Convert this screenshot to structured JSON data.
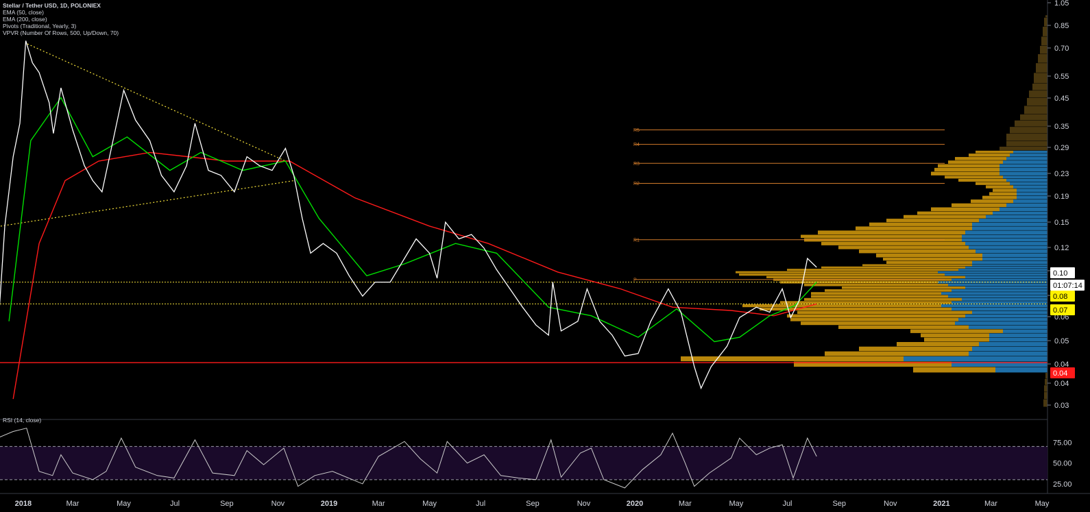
{
  "legend": {
    "title": "Stellar / Tether USD, 1D, POLONIEX",
    "ema50": "EMA (50, close)",
    "ema200": "EMA (200, close)",
    "pivots": "Pivots (Traditional, Yearly, 3)",
    "vpvr": "VPVR (Number Of Rows, 500, Up/Down, 70)"
  },
  "rsi_legend": "RSI (14, close)",
  "colors": {
    "background": "#000000",
    "price": "#ffffff",
    "ema50": "#00e000",
    "ema200": "#ff1a1a",
    "pivot": "#d07a2a",
    "trendline": "#f5e13a",
    "vp_up": "#1e6fa8",
    "vp_down": "#b8860b",
    "rsi_band": "#1a0a2a",
    "rsi_line": "#cccccc"
  },
  "chart_data": {
    "type": "line",
    "symbol": "Stellar / Tether USD",
    "interval": "1D",
    "exchange": "POLONIEX",
    "y_scale": "log",
    "ylim": [
      0.025,
      1.05
    ],
    "y_ticks": [
      "1.05",
      "0.85",
      "0.70",
      "0.55",
      "0.45",
      "0.35",
      "0.29",
      "0.23",
      "0.19",
      "0.15",
      "0.12",
      "0.10",
      "0.08",
      "0.06",
      "0.05",
      "0.04",
      "0.04",
      "0.03"
    ],
    "x_ticks": [
      "2018",
      "Mar",
      "May",
      "Jul",
      "Sep",
      "Nov",
      "2019",
      "Mar",
      "May",
      "Jul",
      "Sep",
      "Nov",
      "2020",
      "Mar",
      "May",
      "Jul",
      "Sep",
      "Nov",
      "2021",
      "Mar",
      "May"
    ],
    "price_series": [
      [
        "2017-12-01",
        0.05
      ],
      [
        "2017-12-10",
        0.14
      ],
      [
        "2017-12-20",
        0.26
      ],
      [
        "2017-12-28",
        0.35
      ],
      [
        "2018-01-04",
        0.73
      ],
      [
        "2018-01-12",
        0.6
      ],
      [
        "2018-01-20",
        0.55
      ],
      [
        "2018-02-01",
        0.42
      ],
      [
        "2018-02-06",
        0.32
      ],
      [
        "2018-02-15",
        0.48
      ],
      [
        "2018-03-01",
        0.33
      ],
      [
        "2018-03-15",
        0.24
      ],
      [
        "2018-03-25",
        0.21
      ],
      [
        "2018-04-05",
        0.19
      ],
      [
        "2018-04-20",
        0.32
      ],
      [
        "2018-05-01",
        0.47
      ],
      [
        "2018-05-15",
        0.36
      ],
      [
        "2018-06-01",
        0.3
      ],
      [
        "2018-06-15",
        0.22
      ],
      [
        "2018-06-30",
        0.19
      ],
      [
        "2018-07-15",
        0.24
      ],
      [
        "2018-07-25",
        0.35
      ],
      [
        "2018-08-10",
        0.23
      ],
      [
        "2018-08-25",
        0.22
      ],
      [
        "2018-09-10",
        0.19
      ],
      [
        "2018-09-25",
        0.26
      ],
      [
        "2018-10-10",
        0.24
      ],
      [
        "2018-10-25",
        0.23
      ],
      [
        "2018-11-10",
        0.28
      ],
      [
        "2018-11-20",
        0.22
      ],
      [
        "2018-11-30",
        0.15
      ],
      [
        "2018-12-10",
        0.11
      ],
      [
        "2018-12-25",
        0.12
      ],
      [
        "2019-01-10",
        0.11
      ],
      [
        "2019-01-25",
        0.09
      ],
      [
        "2019-02-10",
        0.075
      ],
      [
        "2019-02-25",
        0.085
      ],
      [
        "2019-03-15",
        0.085
      ],
      [
        "2019-04-01",
        0.105
      ],
      [
        "2019-04-15",
        0.125
      ],
      [
        "2019-05-01",
        0.11
      ],
      [
        "2019-05-10",
        0.088
      ],
      [
        "2019-05-20",
        0.145
      ],
      [
        "2019-06-05",
        0.125
      ],
      [
        "2019-06-20",
        0.13
      ],
      [
        "2019-07-05",
        0.115
      ],
      [
        "2019-07-20",
        0.095
      ],
      [
        "2019-08-05",
        0.08
      ],
      [
        "2019-08-20",
        0.068
      ],
      [
        "2019-09-05",
        0.058
      ],
      [
        "2019-09-20",
        0.053
      ],
      [
        "2019-09-25",
        0.085
      ],
      [
        "2019-10-05",
        0.055
      ],
      [
        "2019-10-25",
        0.06
      ],
      [
        "2019-11-05",
        0.08
      ],
      [
        "2019-11-20",
        0.06
      ],
      [
        "2019-12-05",
        0.053
      ],
      [
        "2019-12-20",
        0.044
      ],
      [
        "2020-01-05",
        0.045
      ],
      [
        "2020-01-20",
        0.06
      ],
      [
        "2020-02-10",
        0.08
      ],
      [
        "2020-02-25",
        0.065
      ],
      [
        "2020-03-12",
        0.04
      ],
      [
        "2020-03-20",
        0.033
      ],
      [
        "2020-04-01",
        0.04
      ],
      [
        "2020-04-20",
        0.048
      ],
      [
        "2020-05-05",
        0.062
      ],
      [
        "2020-05-25",
        0.068
      ],
      [
        "2020-06-10",
        0.065
      ],
      [
        "2020-06-25",
        0.08
      ],
      [
        "2020-07-05",
        0.062
      ],
      [
        "2020-07-15",
        0.072
      ],
      [
        "2020-07-25",
        0.105
      ],
      [
        "2020-08-05",
        0.097
      ]
    ],
    "ema50_series": [
      [
        "2017-12-15",
        0.06
      ],
      [
        "2018-01-10",
        0.3
      ],
      [
        "2018-02-15",
        0.44
      ],
      [
        "2018-03-25",
        0.26
      ],
      [
        "2018-05-05",
        0.31
      ],
      [
        "2018-06-25",
        0.23
      ],
      [
        "2018-08-01",
        0.27
      ],
      [
        "2018-09-20",
        0.23
      ],
      [
        "2018-11-10",
        0.25
      ],
      [
        "2018-12-20",
        0.15
      ],
      [
        "2019-02-15",
        0.09
      ],
      [
        "2019-04-01",
        0.1
      ],
      [
        "2019-06-01",
        0.12
      ],
      [
        "2019-07-20",
        0.11
      ],
      [
        "2019-09-20",
        0.068
      ],
      [
        "2019-11-10",
        0.063
      ],
      [
        "2020-01-05",
        0.052
      ],
      [
        "2020-02-20",
        0.067
      ],
      [
        "2020-04-05",
        0.05
      ],
      [
        "2020-05-05",
        0.052
      ],
      [
        "2020-06-10",
        0.063
      ],
      [
        "2020-07-10",
        0.069
      ],
      [
        "2020-08-05",
        0.085
      ]
    ],
    "ema200_series": [
      [
        "2017-12-20",
        0.03
      ],
      [
        "2018-01-20",
        0.12
      ],
      [
        "2018-02-20",
        0.21
      ],
      [
        "2018-04-01",
        0.25
      ],
      [
        "2018-06-01",
        0.27
      ],
      [
        "2018-09-01",
        0.25
      ],
      [
        "2018-11-15",
        0.25
      ],
      [
        "2019-02-01",
        0.18
      ],
      [
        "2019-05-01",
        0.14
      ],
      [
        "2019-07-10",
        0.12
      ],
      [
        "2019-10-01",
        0.093
      ],
      [
        "2019-12-15",
        0.08
      ],
      [
        "2020-02-15",
        0.068
      ],
      [
        "2020-04-25",
        0.066
      ],
      [
        "2020-06-15",
        0.063
      ],
      [
        "2020-08-05",
        0.07
      ]
    ],
    "trendlines": [
      {
        "from": [
          "2018-01-06",
          0.71
        ],
        "to": [
          "2018-11-10",
          0.25
        ]
      },
      {
        "from": [
          "2017-12-05",
          0.14
        ],
        "to": [
          "2018-11-20",
          0.21
        ]
      }
    ],
    "pivots": [
      {
        "label": "R5",
        "value": 0.33
      },
      {
        "label": "R4",
        "value": 0.29
      },
      {
        "label": "R3",
        "value": 0.245
      },
      {
        "label": "R2",
        "value": 0.205
      },
      {
        "label": "R1",
        "value": 0.124
      },
      {
        "label": "P",
        "value": 0.087
      }
    ],
    "horizontal_lines": [
      {
        "value": 0.085,
        "color": "#f5e13a",
        "style": "dotted"
      },
      {
        "value": 0.07,
        "color": "#f5e13a",
        "style": "dotted"
      },
      {
        "value": 0.0415,
        "color": "#ff1a1a",
        "style": "solid"
      }
    ],
    "price_labels": [
      {
        "text": "0.10",
        "value": 0.097,
        "bg": "#ffffff",
        "fg": "#000000"
      },
      {
        "text": "01:07:14",
        "value": 0.09,
        "bg": "#ffffff",
        "fg": "#000000"
      },
      {
        "text": "0.08",
        "value": 0.081,
        "bg": "#fff200",
        "fg": "#000000"
      },
      {
        "text": "0.07",
        "value": 0.07,
        "bg": "#fff200",
        "fg": "#000000"
      },
      {
        "text": "0.04",
        "value": 0.0415,
        "bg": "#ff1a1a",
        "fg": "#ffffff"
      }
    ],
    "volume_profile": [
      [
        0.028,
        0,
        6
      ],
      [
        0.03,
        0,
        5
      ],
      [
        0.032,
        0,
        5
      ],
      [
        0.034,
        0,
        4
      ],
      [
        0.036,
        0,
        3
      ],
      [
        0.038,
        76,
        120
      ],
      [
        0.04,
        140,
        230
      ],
      [
        0.042,
        210,
        325
      ],
      [
        0.044,
        115,
        210
      ],
      [
        0.046,
        110,
        165
      ],
      [
        0.048,
        100,
        120
      ],
      [
        0.05,
        85,
        95
      ],
      [
        0.052,
        85,
        100
      ],
      [
        0.054,
        65,
        135
      ],
      [
        0.056,
        115,
        190
      ],
      [
        0.058,
        135,
        225
      ],
      [
        0.06,
        130,
        245
      ],
      [
        0.062,
        120,
        260
      ],
      [
        0.064,
        110,
        255
      ],
      [
        0.066,
        140,
        280
      ],
      [
        0.068,
        155,
        290
      ],
      [
        0.07,
        140,
        250
      ],
      [
        0.072,
        125,
        230
      ],
      [
        0.074,
        145,
        200
      ],
      [
        0.076,
        155,
        190
      ],
      [
        0.078,
        140,
        185
      ],
      [
        0.08,
        120,
        180
      ],
      [
        0.082,
        145,
        210
      ],
      [
        0.084,
        160,
        230
      ],
      [
        0.086,
        140,
        260
      ],
      [
        0.088,
        120,
        290
      ],
      [
        0.09,
        150,
        300
      ],
      [
        0.092,
        160,
        295
      ],
      [
        0.094,
        130,
        250
      ],
      [
        0.096,
        120,
        210
      ],
      [
        0.098,
        110,
        160
      ],
      [
        0.1,
        110,
        125
      ],
      [
        0.103,
        95,
        145
      ],
      [
        0.106,
        95,
        155
      ],
      [
        0.11,
        105,
        170
      ],
      [
        0.114,
        115,
        190
      ],
      [
        0.118,
        120,
        210
      ],
      [
        0.122,
        125,
        230
      ],
      [
        0.126,
        125,
        235
      ],
      [
        0.13,
        120,
        215
      ],
      [
        0.135,
        110,
        170
      ],
      [
        0.14,
        110,
        150
      ],
      [
        0.145,
        100,
        135
      ],
      [
        0.15,
        90,
        120
      ],
      [
        0.155,
        80,
        110
      ],
      [
        0.16,
        70,
        100
      ],
      [
        0.166,
        60,
        80
      ],
      [
        0.172,
        50,
        62
      ],
      [
        0.178,
        45,
        50
      ],
      [
        0.184,
        45,
        40
      ],
      [
        0.19,
        45,
        35
      ],
      [
        0.196,
        50,
        40
      ],
      [
        0.202,
        55,
        50
      ],
      [
        0.208,
        60,
        70
      ],
      [
        0.214,
        65,
        85
      ],
      [
        0.22,
        70,
        100
      ],
      [
        0.228,
        70,
        95
      ],
      [
        0.236,
        70,
        90
      ],
      [
        0.244,
        65,
        80
      ],
      [
        0.252,
        60,
        75
      ],
      [
        0.26,
        55,
        60
      ],
      [
        0.268,
        50,
        55
      ],
      [
        0.275,
        0,
        70
      ],
      [
        0.285,
        0,
        60
      ],
      [
        0.3,
        0,
        60
      ],
      [
        0.32,
        0,
        55
      ],
      [
        0.34,
        0,
        48
      ],
      [
        0.36,
        0,
        40
      ],
      [
        0.38,
        0,
        34
      ],
      [
        0.41,
        0,
        30
      ],
      [
        0.44,
        0,
        27
      ],
      [
        0.47,
        0,
        22
      ],
      [
        0.5,
        0,
        20
      ],
      [
        0.55,
        0,
        17
      ],
      [
        0.6,
        0,
        14
      ],
      [
        0.65,
        0,
        11
      ],
      [
        0.7,
        0,
        9
      ],
      [
        0.76,
        0,
        7
      ],
      [
        0.83,
        0,
        5
      ],
      [
        0.9,
        0,
        3
      ]
    ],
    "rsi": {
      "ylim": [
        15,
        100
      ],
      "y_ticks": [
        "75.00",
        "50.00",
        "25.00"
      ],
      "overbought": 70,
      "oversold": 30,
      "series": [
        [
          "2017-12-01",
          80
        ],
        [
          "2017-12-20",
          88
        ],
        [
          "2018-01-05",
          92
        ],
        [
          "2018-01-20",
          40
        ],
        [
          "2018-02-05",
          35
        ],
        [
          "2018-02-15",
          60
        ],
        [
          "2018-03-01",
          38
        ],
        [
          "2018-03-25",
          30
        ],
        [
          "2018-04-10",
          40
        ],
        [
          "2018-04-28",
          80
        ],
        [
          "2018-05-15",
          45
        ],
        [
          "2018-06-10",
          35
        ],
        [
          "2018-06-30",
          32
        ],
        [
          "2018-07-25",
          78
        ],
        [
          "2018-08-15",
          38
        ],
        [
          "2018-09-10",
          35
        ],
        [
          "2018-09-25",
          65
        ],
        [
          "2018-10-15",
          48
        ],
        [
          "2018-11-08",
          68
        ],
        [
          "2018-11-25",
          22
        ],
        [
          "2018-12-15",
          35
        ],
        [
          "2019-01-05",
          40
        ],
        [
          "2019-02-10",
          25
        ],
        [
          "2019-03-01",
          58
        ],
        [
          "2019-04-01",
          76
        ],
        [
          "2019-04-20",
          55
        ],
        [
          "2019-05-10",
          38
        ],
        [
          "2019-05-22",
          76
        ],
        [
          "2019-06-15",
          50
        ],
        [
          "2019-07-05",
          60
        ],
        [
          "2019-07-25",
          35
        ],
        [
          "2019-08-15",
          32
        ],
        [
          "2019-09-05",
          30
        ],
        [
          "2019-09-23",
          78
        ],
        [
          "2019-10-05",
          33
        ],
        [
          "2019-10-28",
          62
        ],
        [
          "2019-11-10",
          68
        ],
        [
          "2019-11-25",
          30
        ],
        [
          "2019-12-20",
          20
        ],
        [
          "2020-01-10",
          42
        ],
        [
          "2020-02-01",
          60
        ],
        [
          "2020-02-15",
          86
        ],
        [
          "2020-03-01",
          50
        ],
        [
          "2020-03-12",
          22
        ],
        [
          "2020-03-30",
          38
        ],
        [
          "2020-04-25",
          56
        ],
        [
          "2020-05-05",
          80
        ],
        [
          "2020-05-25",
          60
        ],
        [
          "2020-06-10",
          68
        ],
        [
          "2020-06-25",
          72
        ],
        [
          "2020-07-08",
          32
        ],
        [
          "2020-07-25",
          80
        ],
        [
          "2020-08-05",
          58
        ]
      ]
    }
  }
}
